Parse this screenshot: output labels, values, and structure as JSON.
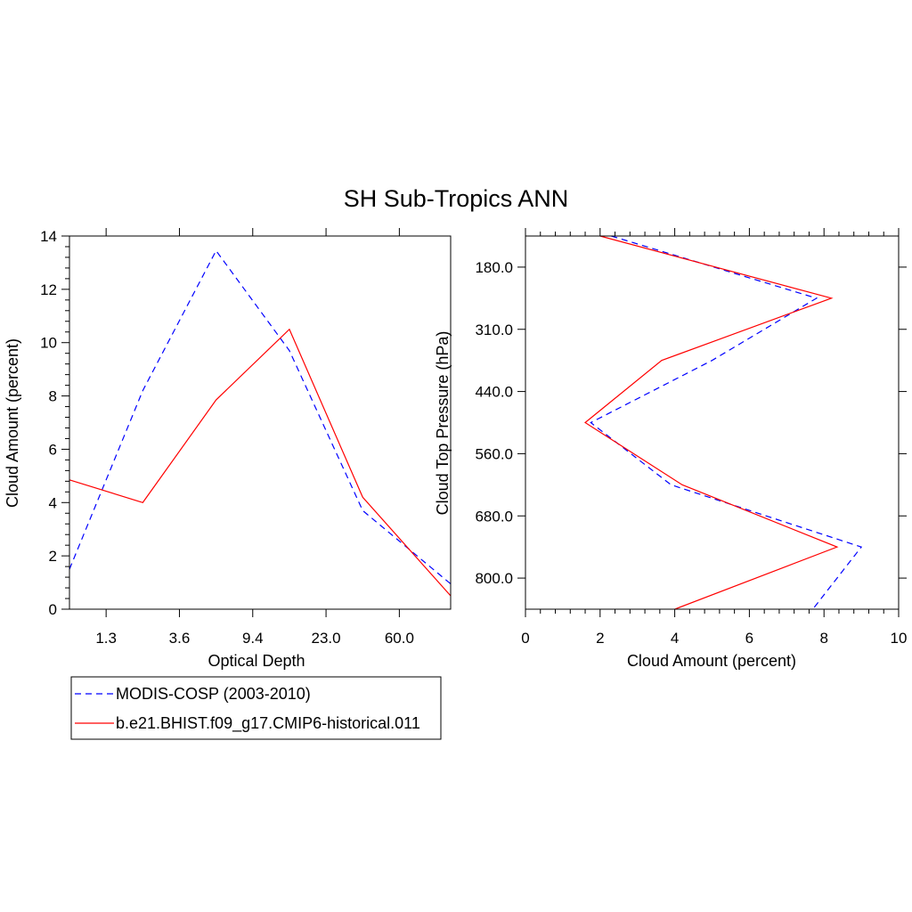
{
  "title": "SH Sub-Tropics ANN",
  "colors": {
    "modis": "#0000ff",
    "model": "#ff0000",
    "axis": "#000000"
  },
  "legend": {
    "placement": "bottom-left",
    "entries": [
      {
        "name": "MODIS-COSP (2003-2010)",
        "style": "dashed"
      },
      {
        "name": "b.e21.BHIST.f09_g17.CMIP6-historical.011",
        "style": "solid"
      }
    ]
  },
  "chart_data": [
    {
      "type": "line",
      "xlabel": "Optical Depth",
      "ylabel": "Cloud Amount (percent)",
      "xtick_labels": [
        "1.3",
        "3.6",
        "9.4",
        "23.0",
        "60.0"
      ],
      "xtick_positions": [
        1,
        3,
        5,
        7,
        9
      ],
      "xlim": [
        0,
        10.4
      ],
      "ylim": [
        0,
        14
      ],
      "yticks": [
        0,
        2,
        4,
        6,
        8,
        10,
        12,
        14
      ],
      "x": [
        0,
        2,
        4,
        6,
        8,
        10.4
      ],
      "series": [
        {
          "name": "MODIS-COSP (2003-2010)",
          "values": [
            1.5,
            8.2,
            13.45,
            9.7,
            3.7,
            0.95
          ]
        },
        {
          "name": "b.e21.BHIST.f09_g17.CMIP6-historical.011",
          "values": [
            4.85,
            4.0,
            7.85,
            10.5,
            4.2,
            0.5
          ]
        }
      ]
    },
    {
      "type": "line",
      "xlabel": "Cloud Amount (percent)",
      "ylabel": "Cloud Top Pressure (hPa)",
      "xlim": [
        0,
        10
      ],
      "xticks": [
        0,
        2,
        4,
        6,
        8,
        10
      ],
      "ylim": [
        50,
        950
      ],
      "y_inverted": true,
      "ytick_labels": [
        "180.0",
        "310.0",
        "440.0",
        "560.0",
        "680.0",
        "800.0"
      ],
      "ytick_positions": [
        125,
        275,
        425,
        575,
        725,
        875
      ],
      "y": [
        50,
        200,
        350,
        500,
        650,
        800,
        950
      ],
      "series": [
        {
          "name": "MODIS-COSP (2003-2010)",
          "values": [
            2.3,
            7.8,
            5.0,
            1.75,
            3.9,
            9.0,
            7.7
          ]
        },
        {
          "name": "b.e21.BHIST.f09_g17.CMIP6-historical.011",
          "values": [
            2.0,
            8.2,
            3.65,
            1.6,
            4.2,
            8.35,
            4.0
          ]
        }
      ]
    }
  ]
}
